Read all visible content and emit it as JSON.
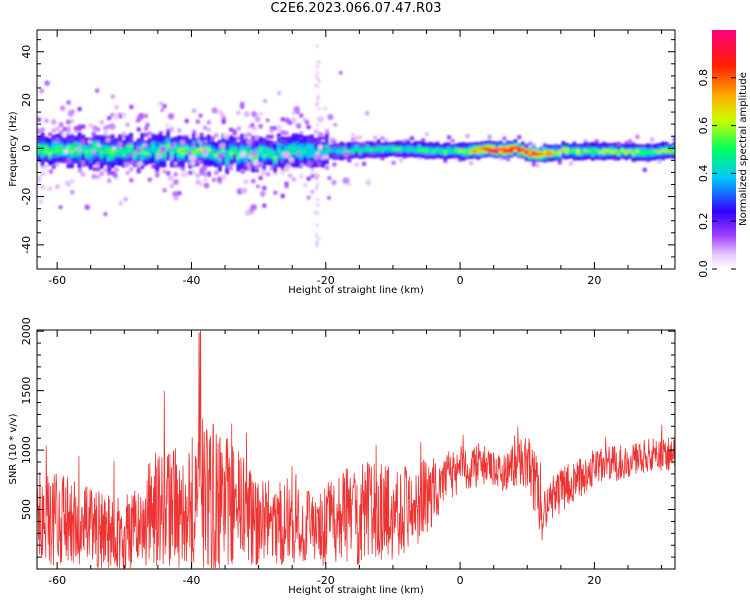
{
  "title": "C2E6.2023.066.07.47.R03",
  "chart_data": [
    {
      "type": "heatmap",
      "xlabel": "Height of straight line (km)",
      "ylabel": "Frequency (Hz)",
      "xlim": [
        -63,
        32
      ],
      "ylim": [
        -50,
        49
      ],
      "xticks": [
        -60,
        -40,
        -20,
        0,
        20
      ],
      "yticks": [
        -40,
        -20,
        0,
        20,
        40
      ],
      "colorbar": {
        "label": "Normalized spectral amplitude",
        "range": [
          0,
          1
        ],
        "ticks": [
          0.0,
          0.2,
          0.4,
          0.6,
          0.8
        ]
      },
      "colormap": [
        "#ffffff",
        "#e6c8ff",
        "#a040ff",
        "#3000ff",
        "#00c8ff",
        "#00ff60",
        "#c8ff00",
        "#ffb000",
        "#ff2000",
        "#ff0080"
      ],
      "ridge": {
        "description_points_x": [
          -63,
          -50,
          -40,
          -30,
          -21,
          -10,
          0,
          4,
          8,
          10,
          12,
          15,
          32
        ],
        "center_hz": [
          0,
          -1,
          -1,
          -2,
          -1,
          0,
          -1,
          0,
          0,
          -2,
          -2,
          -1,
          -1
        ],
        "peak_amplitude": [
          0.55,
          0.5,
          0.55,
          0.5,
          0.45,
          0.5,
          0.55,
          0.95,
          0.95,
          0.9,
          0.9,
          0.6,
          0.6
        ]
      }
    },
    {
      "type": "line",
      "xlabel": "Height of straight line (km)",
      "ylabel": "SNR (10 * v/v)",
      "xlim": [
        -63,
        32
      ],
      "ylim": [
        0,
        2010
      ],
      "xticks": [
        -60,
        -40,
        -20,
        0,
        20
      ],
      "yticks": [
        500,
        1000,
        1500,
        2000
      ],
      "color": "#ee3333",
      "envelope": {
        "x": [
          -63,
          -60,
          -56,
          -52,
          -48,
          -46,
          -43,
          -40,
          -38,
          -36,
          -33,
          -30,
          -27,
          -24,
          -21,
          -18,
          -14,
          -10,
          -6,
          -3,
          0,
          3,
          6,
          9,
          11,
          12,
          13,
          16,
          20,
          24,
          28,
          32
        ],
        "mid": [
          400,
          420,
          350,
          300,
          320,
          480,
          520,
          560,
          600,
          580,
          520,
          380,
          380,
          420,
          300,
          450,
          470,
          480,
          560,
          700,
          840,
          880,
          800,
          900,
          750,
          450,
          550,
          700,
          850,
          900,
          950,
          980
        ],
        "amp": [
          350,
          400,
          350,
          320,
          350,
          450,
          500,
          600,
          700,
          600,
          500,
          350,
          350,
          400,
          320,
          400,
          450,
          400,
          350,
          250,
          200,
          180,
          150,
          200,
          350,
          250,
          200,
          180,
          150,
          150,
          140,
          150
        ]
      }
    }
  ]
}
